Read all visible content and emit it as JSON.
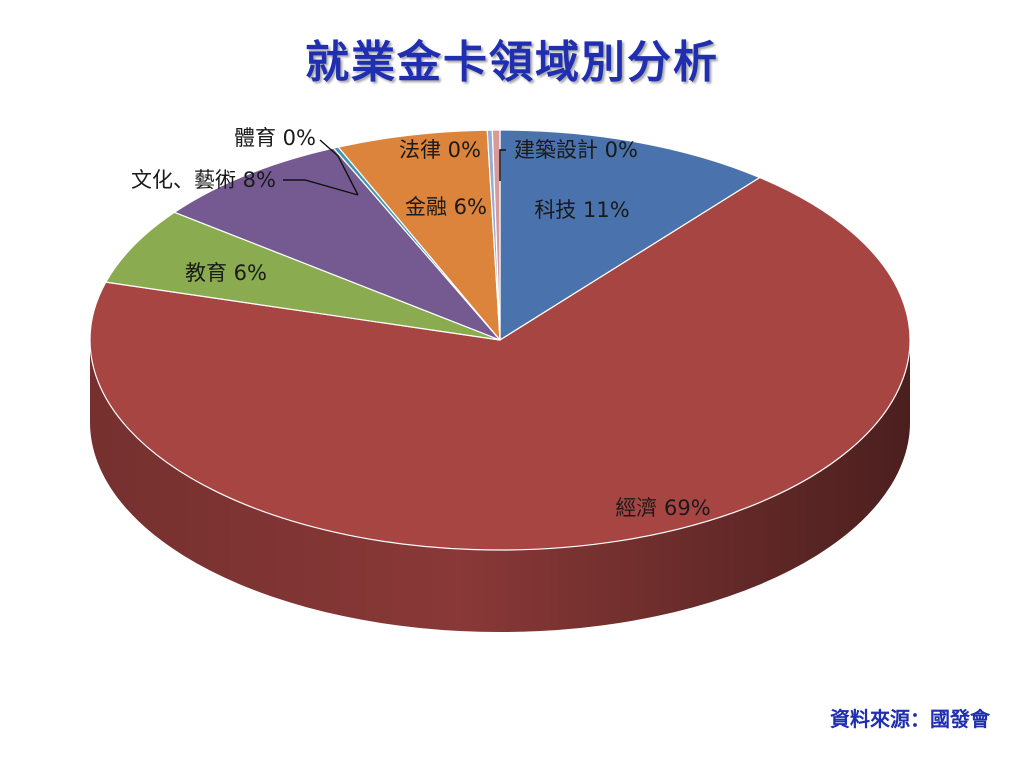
{
  "colors": {
    "title": "#1f2fb0",
    "source": "#1f2fb0"
  },
  "chart_data": {
    "type": "pie",
    "title": "就業金卡領域別分析",
    "style": "3d-tilted",
    "slices": [
      {
        "name": "科技",
        "label": "科技 11%",
        "value": 11,
        "color": "#4a72ac"
      },
      {
        "name": "經濟",
        "label": "經濟 69%",
        "value": 69,
        "color": "#a74543"
      },
      {
        "name": "教育",
        "label": "教育 6%",
        "value": 6,
        "color": "#8aab4f"
      },
      {
        "name": "文化、藝術",
        "label": "文化、藝術 8%",
        "value": 8,
        "color": "#745a91"
      },
      {
        "name": "體育",
        "label": "體育 0%",
        "value": 0.2,
        "color": "#3f98b0"
      },
      {
        "name": "金融",
        "label": "金融 6%",
        "value": 6,
        "color": "#dc833c"
      },
      {
        "name": "法律",
        "label": "法律 0%",
        "value": 0.2,
        "color": "#95acd3"
      },
      {
        "name": "建築設計",
        "label": "建築設計 0%",
        "value": 0.3,
        "color": "#d89a98"
      }
    ]
  },
  "source": "資料來源：國發會"
}
